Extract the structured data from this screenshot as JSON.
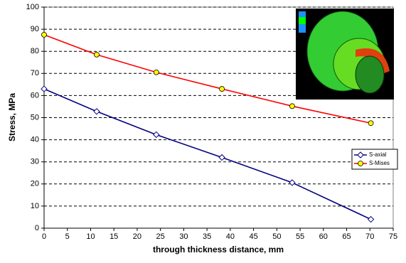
{
  "chart_data": {
    "type": "line",
    "x_label": "through thickness distance, mm",
    "y_label": "Stress, MPa",
    "x": [
      0,
      11.3,
      24.1,
      38.2,
      53.3,
      70.2
    ],
    "series": [
      {
        "name": "S-axial",
        "color": "#000080",
        "marker": "diamond",
        "marker_fill": "#ffffff",
        "values": [
          63,
          52.8,
          42.3,
          32,
          20.6,
          4
        ]
      },
      {
        "name": "S-Mises",
        "color": "#ff0000",
        "marker": "circle",
        "marker_fill": "#ffff00",
        "values": [
          87.5,
          78.5,
          70.5,
          63,
          55.2,
          47.5
        ]
      }
    ],
    "xlim": [
      0,
      75
    ],
    "xticks": [
      0,
      5,
      10,
      15,
      20,
      25,
      30,
      35,
      40,
      45,
      50,
      55,
      60,
      65,
      70,
      75
    ],
    "ylim": [
      0,
      100
    ],
    "yticks": [
      0,
      10,
      20,
      30,
      40,
      50,
      60,
      70,
      80,
      90,
      100
    ],
    "grid": true,
    "legend": "right"
  }
}
